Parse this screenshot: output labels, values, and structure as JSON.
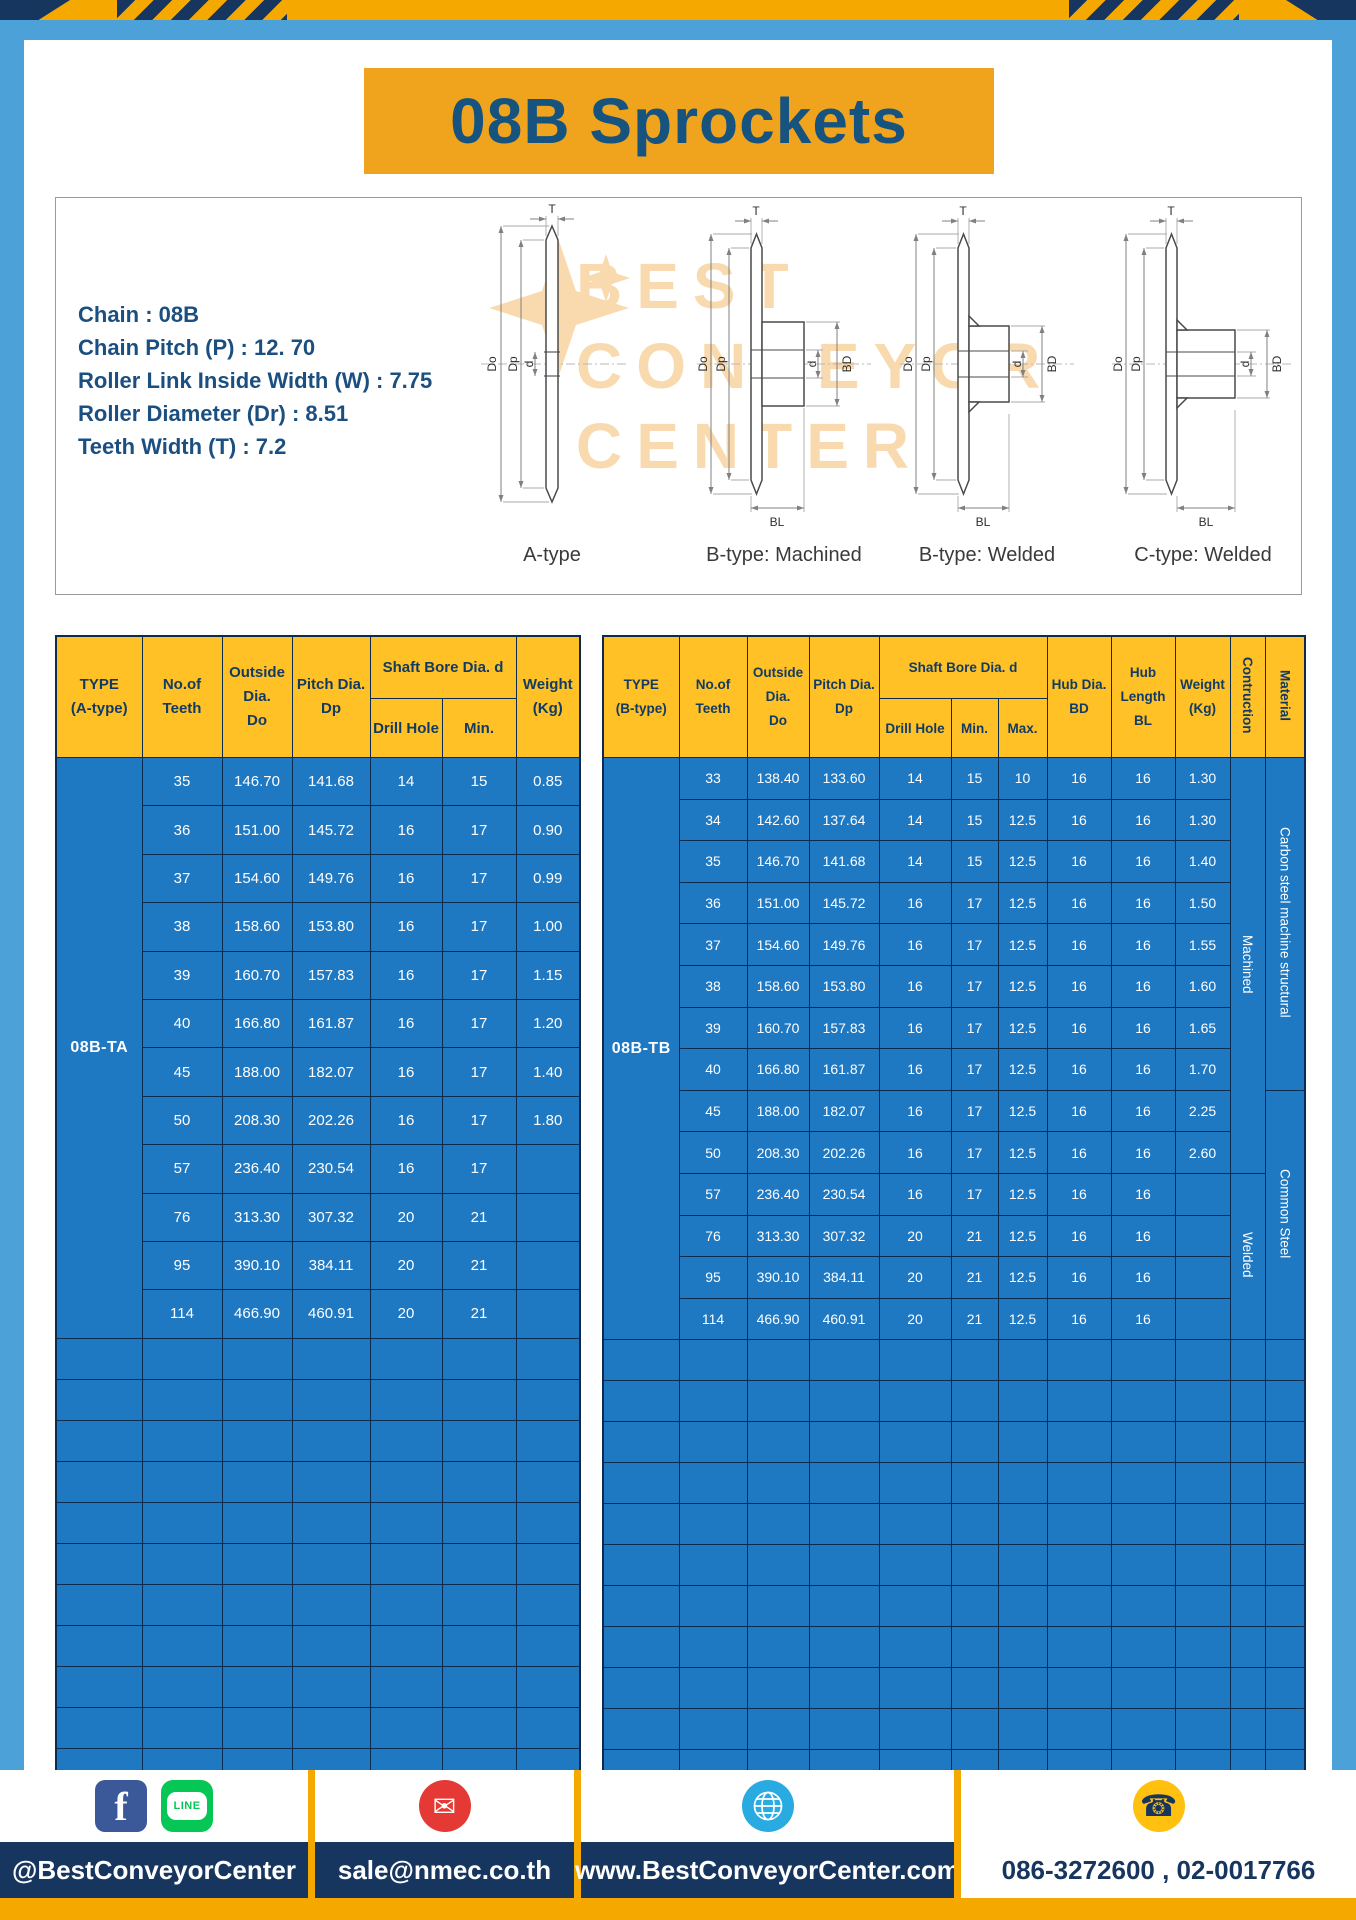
{
  "page": {
    "title": "08B Sprockets"
  },
  "specs": {
    "lines": [
      "Chain : 08B",
      "Chain Pitch (P) : 12. 70",
      "Roller Link Inside Width (W) : 7.75",
      "Roller Diameter (Dr) : 8.51",
      "Teeth Width (T) : 7.2"
    ]
  },
  "watermark": {
    "lines": [
      "BEST",
      "CONVEYOR",
      "CENTER"
    ]
  },
  "diagram": {
    "captions": [
      "A-type",
      "B-type: Machined",
      "B-type: Welded",
      "C-type: Welded"
    ],
    "dims": {
      "T": "T",
      "Do": "Do",
      "Dp": "Dp",
      "d": "d",
      "BD": "BD",
      "BL": "BL"
    }
  },
  "tables": {
    "left": {
      "type_label": "08B-TA",
      "headers": {
        "type": [
          "TYPE",
          "(A-type)"
        ],
        "teeth": [
          "No.of",
          "Teeth"
        ],
        "outside": [
          "Outside",
          "Dia.",
          "Do"
        ],
        "pitch": [
          "Pitch Dia.",
          "Dp"
        ],
        "shaft_group": "Shaft Bore Dia. d",
        "drill": "Drill Hole",
        "min": "Min.",
        "weight": [
          "Weight",
          "(Kg)"
        ]
      },
      "rows": [
        [
          "35",
          "146.70",
          "141.68",
          "14",
          "15",
          "0.85"
        ],
        [
          "36",
          "151.00",
          "145.72",
          "16",
          "17",
          "0.90"
        ],
        [
          "37",
          "154.60",
          "149.76",
          "16",
          "17",
          "0.99"
        ],
        [
          "38",
          "158.60",
          "153.80",
          "16",
          "17",
          "1.00"
        ],
        [
          "39",
          "160.70",
          "157.83",
          "16",
          "17",
          "1.15"
        ],
        [
          "40",
          "166.80",
          "161.87",
          "16",
          "17",
          "1.20"
        ],
        [
          "45",
          "188.00",
          "182.07",
          "16",
          "17",
          "1.40"
        ],
        [
          "50",
          "208.30",
          "202.26",
          "16",
          "17",
          "1.80"
        ],
        [
          "57",
          "236.40",
          "230.54",
          "16",
          "17",
          ""
        ],
        [
          "76",
          "313.30",
          "307.32",
          "20",
          "21",
          ""
        ],
        [
          "95",
          "390.10",
          "384.11",
          "20",
          "21",
          ""
        ],
        [
          "114",
          "466.90",
          "460.91",
          "20",
          "21",
          ""
        ]
      ],
      "empty_rows": 11
    },
    "right": {
      "type_label": "08B-TB",
      "headers": {
        "type": [
          "TYPE",
          "(B-type)"
        ],
        "teeth": [
          "No.of",
          "Teeth"
        ],
        "outside": [
          "Outside",
          "Dia.",
          "Do"
        ],
        "pitch": [
          "Pitch Dia.",
          "Dp"
        ],
        "shaft_group": "Shaft Bore Dia. d",
        "drill": "Drill Hole",
        "min": "Min.",
        "max": "Max.",
        "hub_dia": [
          "Hub Dia.",
          "BD"
        ],
        "hub_len": [
          "Hub",
          "Length",
          "BL"
        ],
        "weight": [
          "Weight",
          "(Kg)"
        ],
        "construction": "Contruction",
        "material": "Material"
      },
      "rows": [
        [
          "33",
          "138.40",
          "133.60",
          "14",
          "15",
          "10",
          "16",
          "16",
          "1.30"
        ],
        [
          "34",
          "142.60",
          "137.64",
          "14",
          "15",
          "12.5",
          "16",
          "16",
          "1.30"
        ],
        [
          "35",
          "146.70",
          "141.68",
          "14",
          "15",
          "12.5",
          "16",
          "16",
          "1.40"
        ],
        [
          "36",
          "151.00",
          "145.72",
          "16",
          "17",
          "12.5",
          "16",
          "16",
          "1.50"
        ],
        [
          "37",
          "154.60",
          "149.76",
          "16",
          "17",
          "12.5",
          "16",
          "16",
          "1.55"
        ],
        [
          "38",
          "158.60",
          "153.80",
          "16",
          "17",
          "12.5",
          "16",
          "16",
          "1.60"
        ],
        [
          "39",
          "160.70",
          "157.83",
          "16",
          "17",
          "12.5",
          "16",
          "16",
          "1.65"
        ],
        [
          "40",
          "166.80",
          "161.87",
          "16",
          "17",
          "12.5",
          "16",
          "16",
          "1.70"
        ],
        [
          "45",
          "188.00",
          "182.07",
          "16",
          "17",
          "12.5",
          "16",
          "16",
          "2.25"
        ],
        [
          "50",
          "208.30",
          "202.26",
          "16",
          "17",
          "12.5",
          "16",
          "16",
          "2.60"
        ],
        [
          "57",
          "236.40",
          "230.54",
          "16",
          "17",
          "12.5",
          "16",
          "16",
          ""
        ],
        [
          "76",
          "313.30",
          "307.32",
          "20",
          "21",
          "12.5",
          "16",
          "16",
          ""
        ],
        [
          "95",
          "390.10",
          "384.11",
          "20",
          "21",
          "12.5",
          "16",
          "16",
          ""
        ],
        [
          "114",
          "466.90",
          "460.91",
          "20",
          "21",
          "12.5",
          "16",
          "16",
          ""
        ]
      ],
      "construction_spans": [
        {
          "label": "Machined",
          "rows": 10
        },
        {
          "label": "Welded",
          "rows": 4
        }
      ],
      "material_spans": [
        {
          "label": "Carbon steel  machine structural",
          "rows": 8
        },
        {
          "label": "Common  Steel",
          "rows": 6
        }
      ],
      "empty_rows": 11
    }
  },
  "footer": {
    "sections": [
      {
        "label": "@BestConveyorCenter"
      },
      {
        "label": "sale@nmec.co.th"
      },
      {
        "label": "www.BestConveyorCenter.com"
      },
      {
        "label": "086-3272600 , 02-0017766"
      }
    ],
    "icons": {
      "facebook": "f",
      "line": "LINE",
      "mail": "✉",
      "phone": "☎"
    }
  },
  "colors": {
    "banner_yellow": "#F0A41E",
    "header_yellow": "#FFC125",
    "table_blue": "#1E78C2",
    "grid_navy": "#0A2C50",
    "navy_text": "#17537F",
    "frame_blue": "#4BA1D8",
    "footer_navy": "#16355F",
    "strip_yellow": "#F5A800",
    "fb_blue": "#3B5998",
    "line_green": "#06C755",
    "mail_red": "#E53935",
    "globe_blue": "#29ABE2",
    "phone_yellow": "#FFC010",
    "watermark_orange": "#EFA93F"
  }
}
